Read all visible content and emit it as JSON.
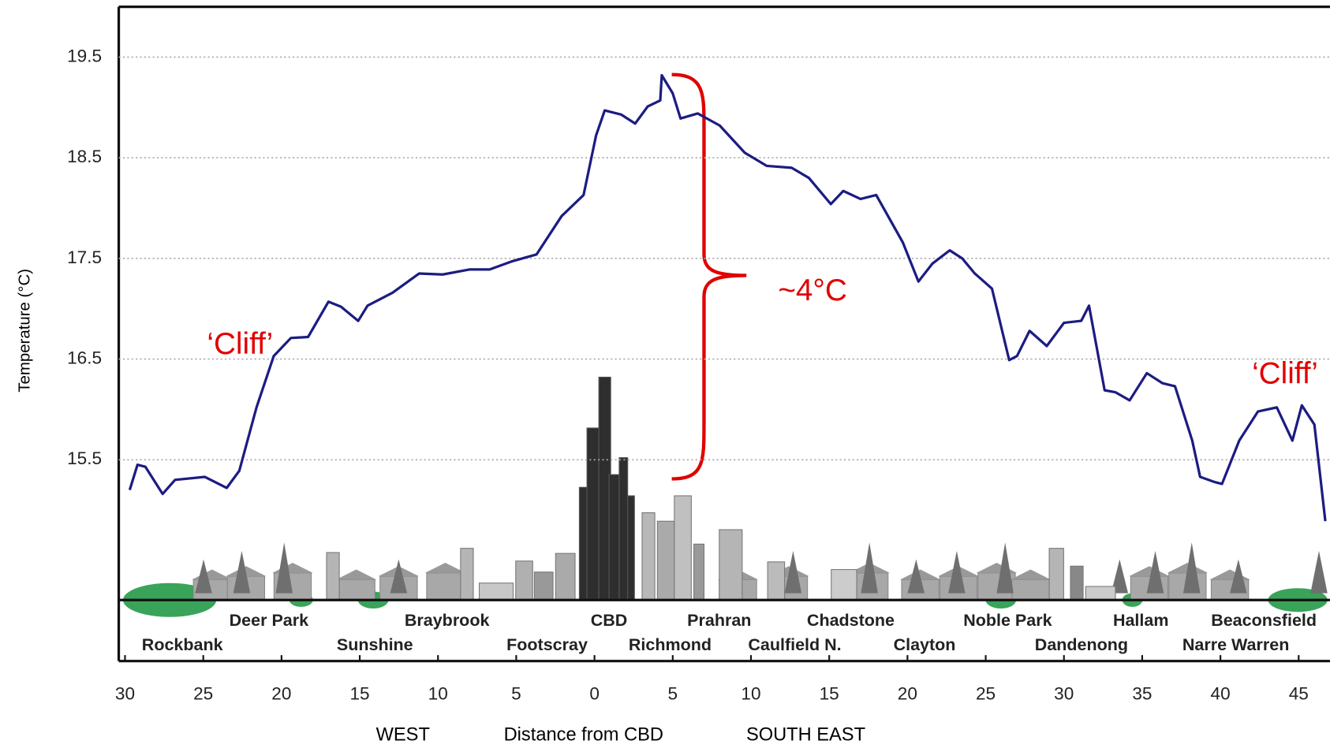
{
  "chart_data": {
    "type": "line",
    "y_label": "Temperature (°C)",
    "x_label": "Distance from CBD",
    "x_direction_left": "WEST",
    "x_direction_right": "SOUTH EAST",
    "color": "#1c1c82",
    "x": [
      -29.7,
      -29.2,
      -28.7,
      -27.6,
      -26.8,
      -24.9,
      -23.5,
      -22.7,
      -21.6,
      -20.5,
      -19.4,
      -18.3,
      -17.0,
      -16.2,
      -15.1,
      -14.5,
      -12.9,
      -11.2,
      -9.7,
      -8.0,
      -6.7,
      -5.3,
      -3.7,
      -2.1,
      -0.7,
      0.1,
      0.65,
      1.7,
      2.6,
      3.4,
      4.2,
      4.3,
      5.0,
      5.5,
      6.6,
      8.0,
      9.6,
      11.0,
      12.6,
      13.7,
      15.1,
      15.9,
      17.0,
      18.0,
      19.7,
      20.7,
      21.6,
      22.7,
      23.5,
      24.3,
      25.4,
      26.5,
      27.0,
      27.8,
      28.9,
      30.0,
      31.1,
      31.6,
      32.6,
      33.3,
      34.2,
      35.3,
      36.3,
      37.1,
      38.2,
      38.7,
      39.6,
      40.1,
      41.2,
      42.4,
      43.6,
      44.6,
      45.2,
      46.0,
      46.7
    ],
    "values": [
      15.2,
      15.45,
      15.43,
      15.16,
      15.3,
      15.33,
      15.22,
      15.39,
      16.02,
      16.53,
      16.71,
      16.72,
      17.07,
      17.02,
      16.88,
      17.03,
      17.16,
      17.35,
      17.34,
      17.39,
      17.39,
      17.47,
      17.54,
      17.92,
      18.13,
      18.72,
      18.97,
      18.93,
      18.84,
      19.01,
      19.07,
      19.32,
      19.14,
      18.89,
      18.94,
      18.82,
      18.55,
      18.42,
      18.4,
      18.3,
      18.04,
      18.17,
      18.09,
      18.13,
      17.66,
      17.27,
      17.45,
      17.58,
      17.5,
      17.35,
      17.2,
      16.49,
      16.53,
      16.78,
      16.63,
      16.86,
      16.88,
      17.03,
      16.19,
      16.17,
      16.09,
      16.36,
      16.26,
      16.23,
      15.69,
      15.33,
      15.28,
      15.26,
      15.69,
      15.98,
      16.02,
      15.69,
      16.04,
      15.85,
      14.89
    ],
    "xlim": [
      -30.4,
      47
    ],
    "xticks": [
      {
        "value": -30,
        "label": "30"
      },
      {
        "value": -25,
        "label": "25"
      },
      {
        "value": -20,
        "label": "20"
      },
      {
        "value": -15,
        "label": "15"
      },
      {
        "value": -10,
        "label": "10"
      },
      {
        "value": -5,
        "label": "5"
      },
      0,
      5,
      10,
      15,
      20,
      25,
      30,
      35,
      40,
      45
    ],
    "ylim": [
      13.5,
      20.0
    ],
    "yticks": [
      15.5,
      16.5,
      17.5,
      18.5,
      19.5
    ],
    "grid": true,
    "places_upper": [
      "Deer Park",
      "Braybrook",
      "CBD",
      "Prahran",
      "Chadstone",
      "Noble Park",
      "Hallam",
      "Beaconsfield"
    ],
    "places_lower": [
      "Rockbank",
      "Sunshine",
      "Footscray",
      "Richmond",
      "Caulfield N.",
      "Clayton",
      "Dandenong",
      "Narre Warren"
    ],
    "annotations": [
      "‘Cliff’",
      "~4°C",
      "‘Cliff’"
    ]
  }
}
